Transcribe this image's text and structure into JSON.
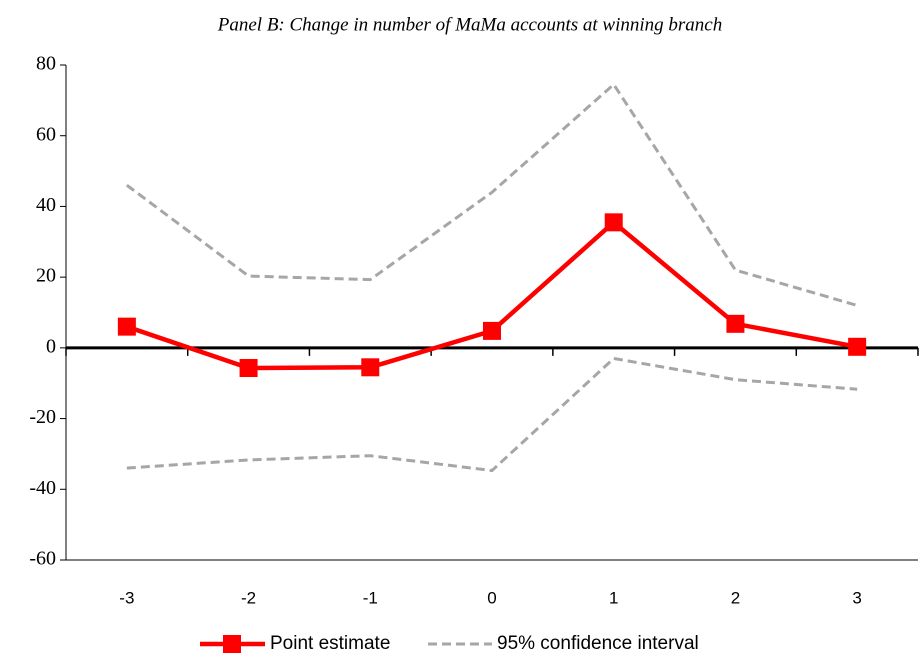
{
  "chart_data": {
    "type": "line",
    "title": "Panel B: Change in number of MaMa accounts at winning branch",
    "categories": [
      "-3",
      "-2",
      "-1",
      "0",
      "1",
      "2",
      "3"
    ],
    "series": [
      {
        "name": "Point estimate",
        "color": "#ff0000",
        "values": [
          6,
          -5.7,
          -5.5,
          4.8,
          35.5,
          6.8,
          0.3
        ]
      }
    ],
    "confidence_interval": {
      "name": "95% confidence interval",
      "color": "#a6a6a6",
      "upper": [
        46,
        20.3,
        19.3,
        44,
        74.5,
        22,
        12
      ],
      "lower": [
        -34,
        -31.7,
        -30.5,
        -34.7,
        -3,
        -9,
        -11.7
      ]
    },
    "ylim": [
      -60,
      80
    ],
    "yticks": [
      -60,
      -40,
      -20,
      0,
      20,
      40,
      60,
      80
    ],
    "grid": false
  }
}
